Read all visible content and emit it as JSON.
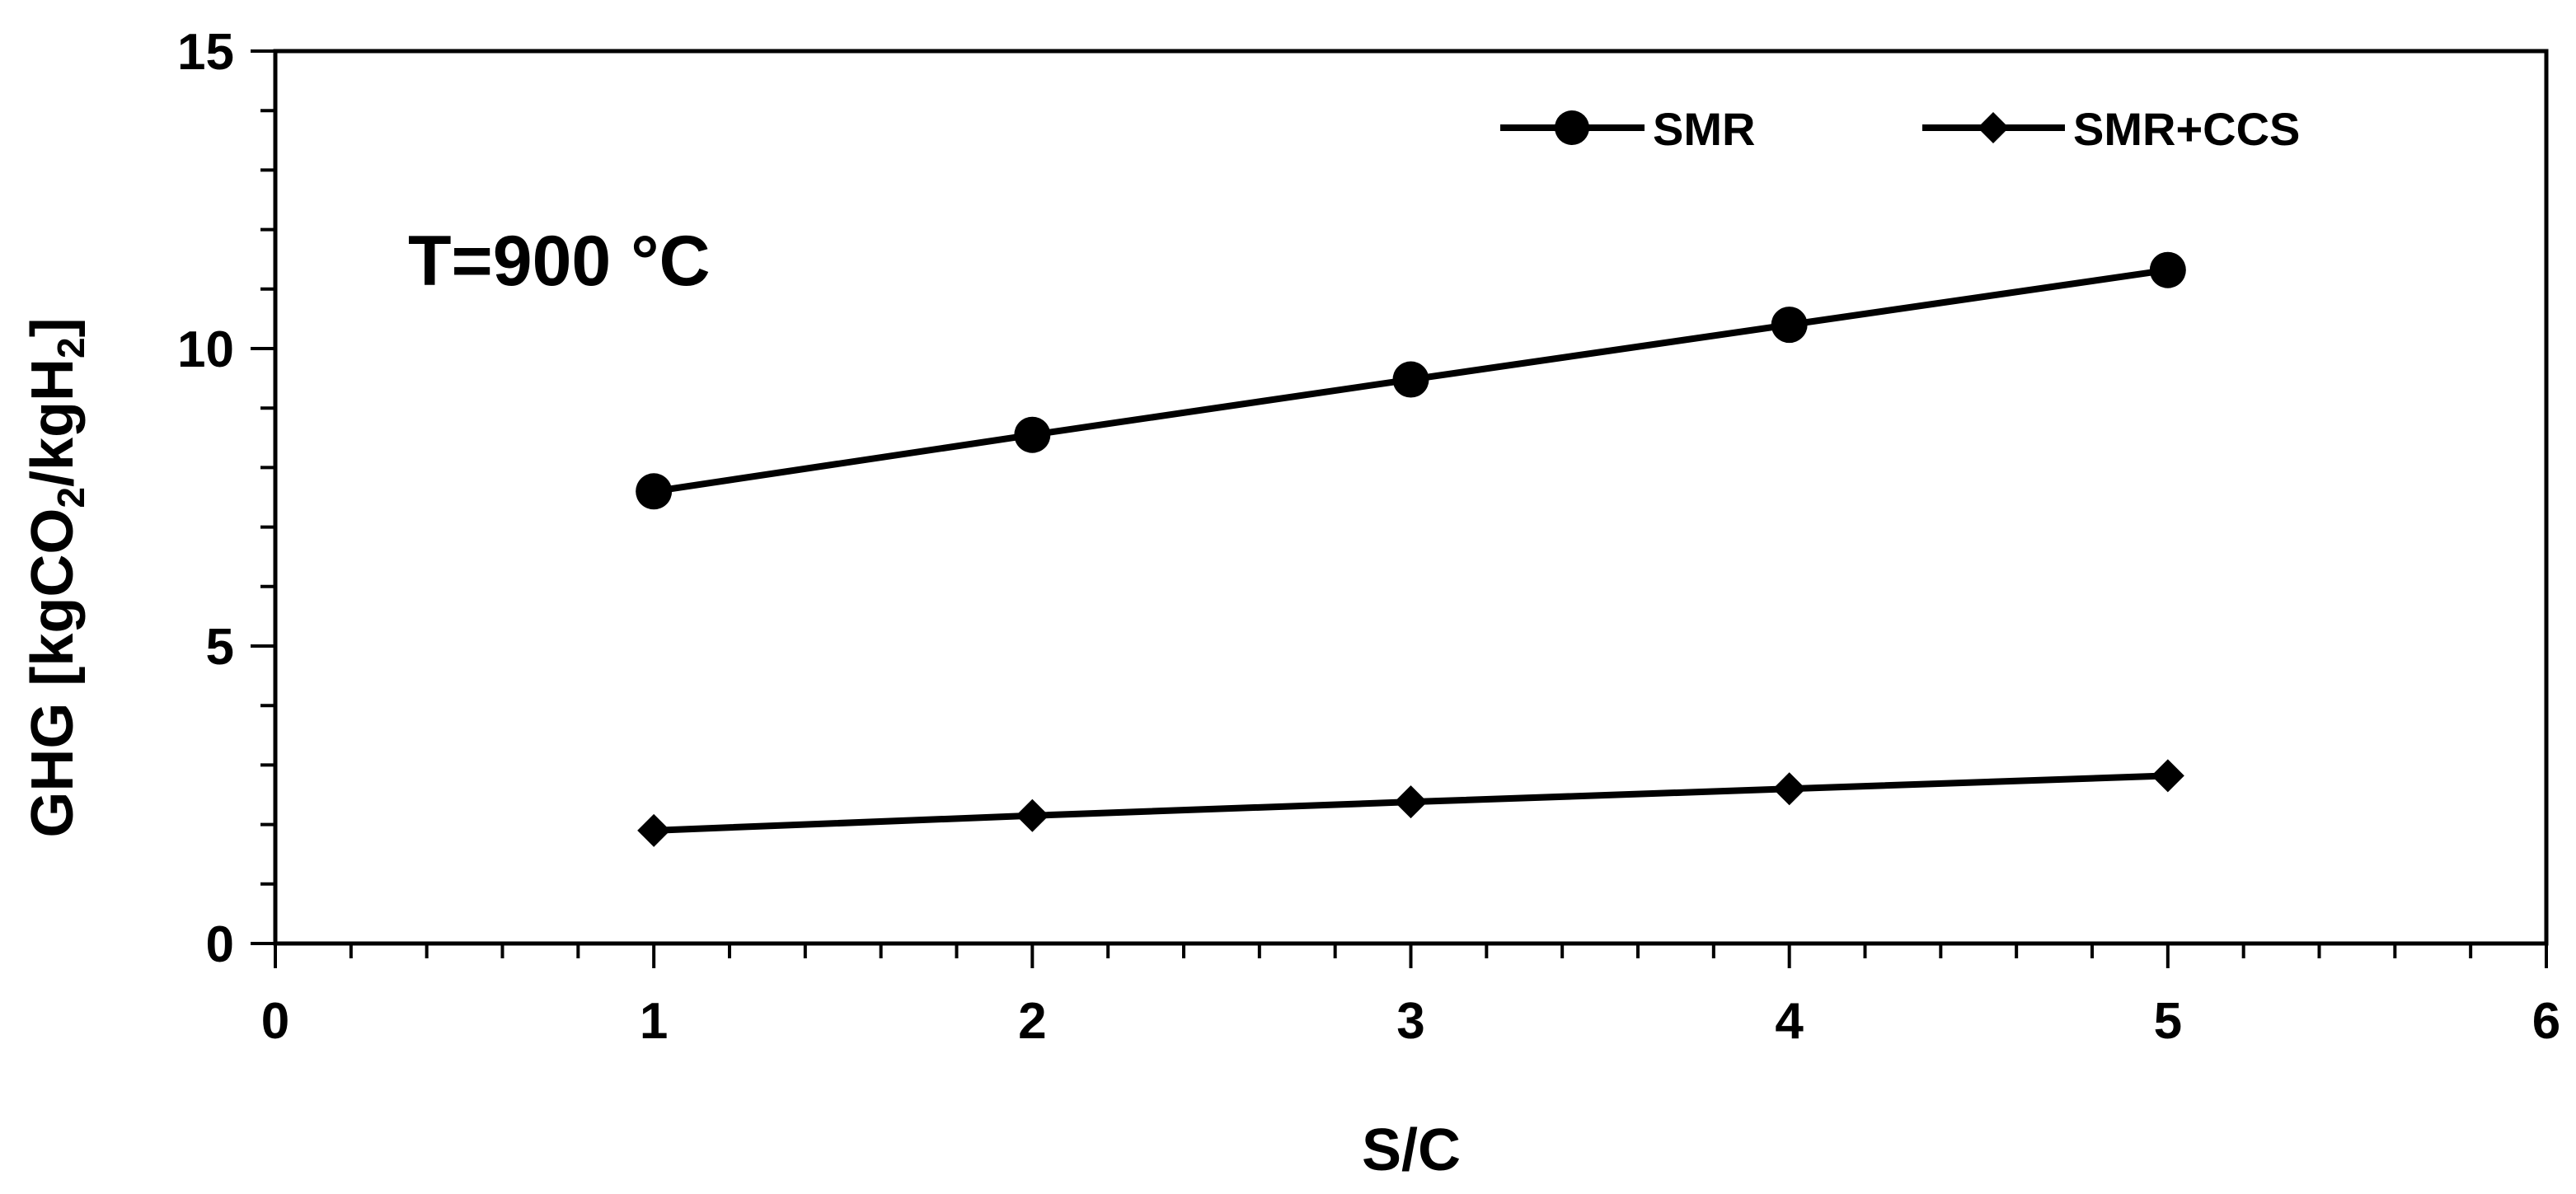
{
  "chart_data": {
    "type": "line",
    "annotation": "T=900 °C",
    "xlabel": "S/C",
    "ylabel": {
      "prefix": "GHG [kgCO",
      "sub1": "2",
      "mid": "/kgH",
      "sub2": "2",
      "suffix": "]"
    },
    "xlim": [
      0,
      6
    ],
    "ylim": [
      0,
      15
    ],
    "x_ticks": [
      "0",
      "1",
      "2",
      "3",
      "4",
      "5",
      "6"
    ],
    "y_ticks": [
      "0",
      "5",
      "10",
      "15"
    ],
    "grid": false,
    "legend_position": "top-right",
    "series": [
      {
        "name": "SMR",
        "marker": "circle",
        "color": "#000000",
        "x": [
          1,
          2,
          3,
          4,
          5
        ],
        "y": [
          7.6,
          8.55,
          9.48,
          10.4,
          11.32
        ]
      },
      {
        "name": "SMR+CCS",
        "marker": "diamond",
        "color": "#000000",
        "x": [
          1,
          2,
          3,
          4,
          5
        ],
        "y": [
          1.9,
          2.15,
          2.38,
          2.6,
          2.82
        ]
      }
    ]
  }
}
